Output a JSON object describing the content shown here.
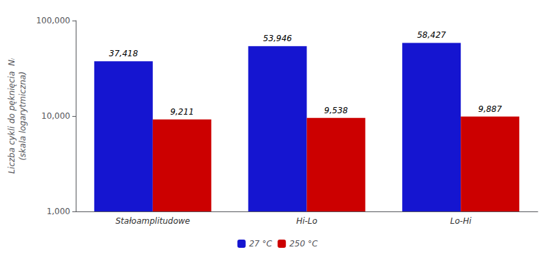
{
  "chart_data": {
    "type": "bar",
    "categories": [
      "Stałoamplitudowe",
      "Hi-Lo",
      "Lo-Hi"
    ],
    "series": [
      {
        "name": "27 °C",
        "color": "#1515d0",
        "values": [
          37418,
          53946,
          58427
        ],
        "value_labels": [
          "37,418",
          "53,946",
          "58,427"
        ]
      },
      {
        "name": "250 °C",
        "color": "#cc0000",
        "values": [
          9211,
          9538,
          9887
        ],
        "value_labels": [
          "9,211",
          "9,538",
          "9,887"
        ]
      }
    ],
    "ylabel": "Liczba cykli do pęknięcia  Nₗ\n(skala logarytmiczna)",
    "log": "y",
    "ylim": [
      1000,
      100000
    ],
    "yticks": [
      {
        "value": 1000,
        "label": "1,000"
      },
      {
        "value": 10000,
        "label": "10,000"
      },
      {
        "value": 100000,
        "label": "100,000"
      }
    ],
    "grid": false,
    "legend": "bottom",
    "data_labels": true
  }
}
